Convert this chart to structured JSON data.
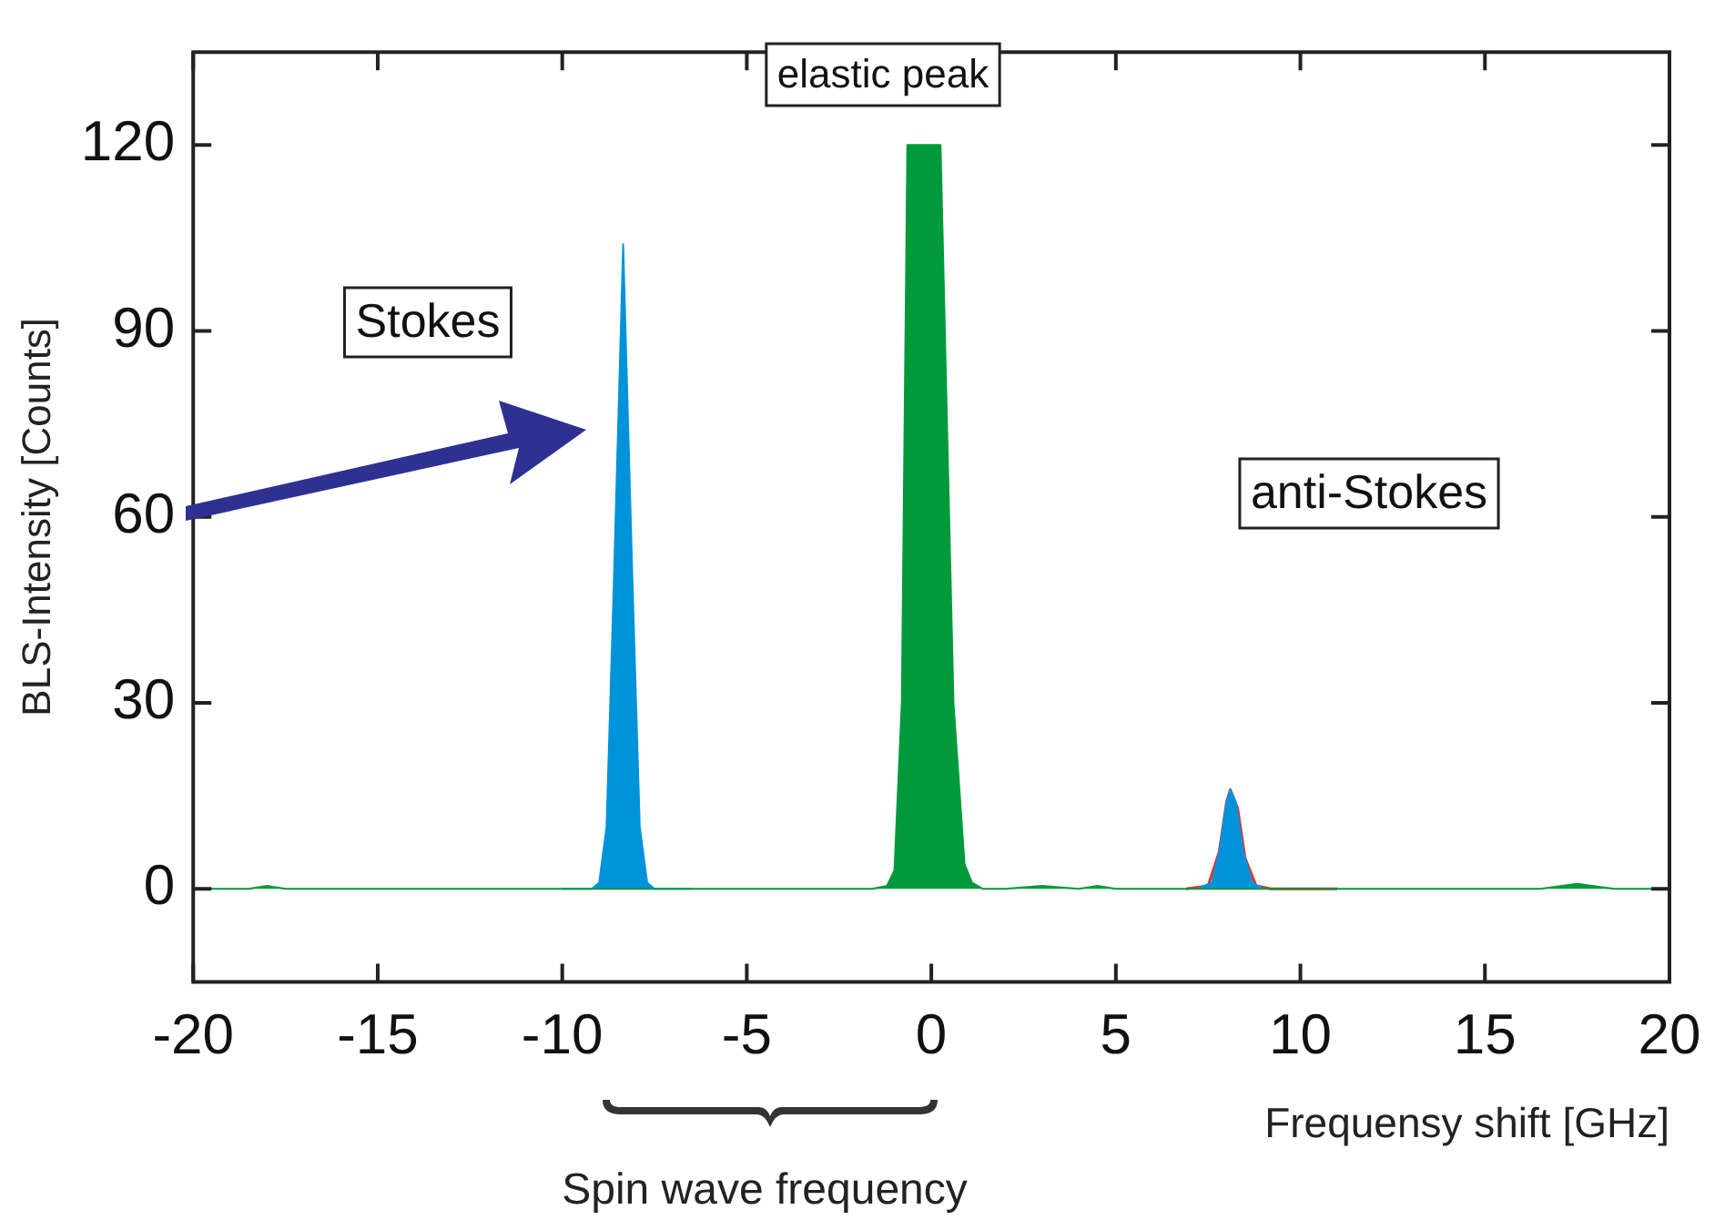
{
  "chart_data": {
    "type": "area",
    "xlabel": "Frequensy shift [GHz]",
    "ylabel": "BLS-Intensity [Counts]",
    "xlim": [
      -20,
      20
    ],
    "xticks": [
      -20,
      -15,
      -10,
      -5,
      0,
      5,
      10,
      15,
      20
    ],
    "ylim": [
      -15,
      135
    ],
    "yticks": [
      0,
      30,
      60,
      90,
      120
    ],
    "grid": false,
    "legend": false,
    "marker": "none",
    "series": [
      {
        "color": "#009a3d",
        "x": [
          -20,
          -18.5,
          -18,
          -17.5,
          -10,
          -1.6,
          -1.2,
          -1.0,
          -0.8,
          -0.65,
          0.25,
          0.6,
          0.9,
          1.1,
          1.4,
          2,
          3,
          4,
          4.5,
          5,
          10,
          16.5,
          17.5,
          18.5,
          20
        ],
        "values": [
          0,
          0,
          0.5,
          0,
          0,
          0,
          0.5,
          3,
          30,
          120,
          120,
          30,
          4,
          1,
          0,
          0,
          0.5,
          0,
          0.5,
          0,
          0,
          0,
          0.8,
          0,
          0
        ]
      },
      {
        "color": "#0093d9",
        "x": [
          -10,
          -9.2,
          -9.0,
          -8.8,
          -8.6,
          -8.35,
          -8.1,
          -7.9,
          -7.7,
          -7.5,
          -6.5
        ],
        "values": [
          0,
          0,
          1,
          10,
          50,
          104,
          50,
          10,
          1,
          0,
          0
        ]
      },
      {
        "color": "#0093d9",
        "x": [
          7.2,
          7.6,
          7.8,
          8.0,
          8.1,
          8.25,
          8.45,
          8.7,
          9.0
        ],
        "values": [
          0,
          1,
          6,
          14,
          16,
          14,
          6,
          1,
          0
        ]
      },
      {
        "type": "line",
        "color": "#e5312b",
        "x": [
          6.9,
          7.5,
          7.8,
          8.0,
          8.1,
          8.3,
          8.5,
          8.8,
          9.2,
          11
        ],
        "values": [
          0,
          0.5,
          6,
          14,
          16,
          13,
          5,
          0.5,
          0,
          0
        ]
      }
    ],
    "annotations": [
      "Stokes",
      "elastic peak",
      "anti-Stokes",
      "Spin wave frequency"
    ]
  }
}
